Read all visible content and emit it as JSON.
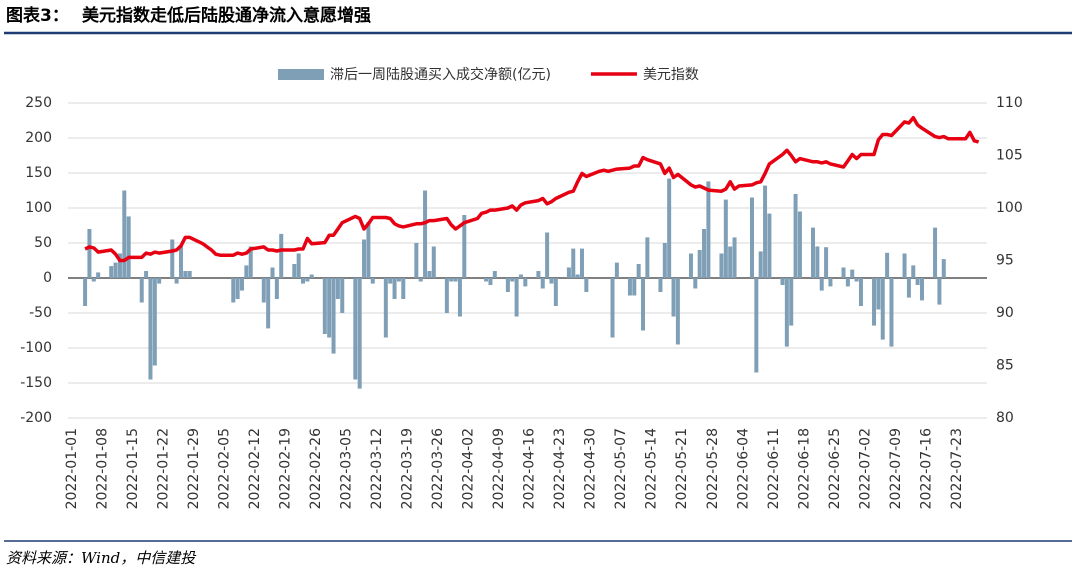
{
  "chart_data": {
    "type": "combo",
    "figure_label": "图表3：",
    "title": "美元指数走低后陆股通净流入意愿增强",
    "source": "资料来源：Wind，中信建投",
    "x": [
      "2022-01-04",
      "2022-01-05",
      "2022-01-06",
      "2022-01-07",
      "2022-01-10",
      "2022-01-11",
      "2022-01-12",
      "2022-01-13",
      "2022-01-14",
      "2022-01-17",
      "2022-01-18",
      "2022-01-19",
      "2022-01-20",
      "2022-01-21",
      "2022-01-24",
      "2022-01-25",
      "2022-01-26",
      "2022-01-27",
      "2022-01-28",
      "2022-01-31",
      "2022-02-01",
      "2022-02-02",
      "2022-02-03",
      "2022-02-04",
      "2022-02-07",
      "2022-02-08",
      "2022-02-09",
      "2022-02-10",
      "2022-02-11",
      "2022-02-14",
      "2022-02-15",
      "2022-02-16",
      "2022-02-17",
      "2022-02-18",
      "2022-02-21",
      "2022-02-22",
      "2022-02-23",
      "2022-02-24",
      "2022-02-25",
      "2022-02-28",
      "2022-03-01",
      "2022-03-02",
      "2022-03-03",
      "2022-03-04",
      "2022-03-07",
      "2022-03-08",
      "2022-03-09",
      "2022-03-10",
      "2022-03-11",
      "2022-03-14",
      "2022-03-15",
      "2022-03-16",
      "2022-03-17",
      "2022-03-18",
      "2022-03-21",
      "2022-03-22",
      "2022-03-23",
      "2022-03-24",
      "2022-03-25",
      "2022-03-28",
      "2022-03-29",
      "2022-03-30",
      "2022-03-31",
      "2022-04-01",
      "2022-04-04",
      "2022-04-05",
      "2022-04-06",
      "2022-04-07",
      "2022-04-08",
      "2022-04-11",
      "2022-04-12",
      "2022-04-13",
      "2022-04-14",
      "2022-04-15",
      "2022-04-18",
      "2022-04-19",
      "2022-04-20",
      "2022-04-21",
      "2022-04-22",
      "2022-04-25",
      "2022-04-26",
      "2022-04-27",
      "2022-04-28",
      "2022-04-29",
      "2022-05-02",
      "2022-05-03",
      "2022-05-04",
      "2022-05-05",
      "2022-05-06",
      "2022-05-09",
      "2022-05-10",
      "2022-05-11",
      "2022-05-12",
      "2022-05-13",
      "2022-05-16",
      "2022-05-17",
      "2022-05-18",
      "2022-05-19",
      "2022-05-20",
      "2022-05-23",
      "2022-05-24",
      "2022-05-25",
      "2022-05-26",
      "2022-05-27",
      "2022-05-30",
      "2022-05-31",
      "2022-06-01",
      "2022-06-02",
      "2022-06-03",
      "2022-06-06",
      "2022-06-07",
      "2022-06-08",
      "2022-06-09",
      "2022-06-10",
      "2022-06-13",
      "2022-06-14",
      "2022-06-15",
      "2022-06-16",
      "2022-06-17",
      "2022-06-20",
      "2022-06-21",
      "2022-06-22",
      "2022-06-23",
      "2022-06-24",
      "2022-06-27",
      "2022-06-28",
      "2022-06-29",
      "2022-06-30",
      "2022-07-01",
      "2022-07-04",
      "2022-07-05",
      "2022-07-06",
      "2022-07-07",
      "2022-07-08",
      "2022-07-11",
      "2022-07-12",
      "2022-07-13",
      "2022-07-14",
      "2022-07-15",
      "2022-07-18",
      "2022-07-19",
      "2022-07-20",
      "2022-07-21",
      "2022-07-22",
      "2022-07-25",
      "2022-07-26",
      "2022-07-27",
      "2022-07-28"
    ],
    "series": [
      {
        "name": "滞后一周陆股通买入成交净额(亿元)",
        "type": "bar",
        "color": "#7f9fb6",
        "values": [
          -40,
          70,
          -5,
          8,
          17,
          22,
          35,
          125,
          88,
          -35,
          10,
          -145,
          -125,
          -8,
          55,
          -8,
          45,
          10,
          10,
          null,
          null,
          null,
          null,
          null,
          -35,
          -30,
          -18,
          18,
          45,
          -35,
          -72,
          15,
          -30,
          63,
          20,
          35,
          -8,
          -5,
          5,
          -80,
          -85,
          -108,
          -30,
          -50,
          -145,
          -158,
          55,
          80,
          -8,
          -85,
          -8,
          -30,
          -5,
          -30,
          50,
          -5,
          125,
          10,
          45,
          -50,
          -5,
          -5,
          -55,
          90,
          null,
          null,
          -5,
          -10,
          10,
          -20,
          -5,
          -55,
          5,
          -12,
          10,
          -15,
          65,
          -8,
          -40,
          15,
          42,
          5,
          42,
          -20,
          null,
          null,
          null,
          -85,
          22,
          -25,
          -25,
          20,
          -75,
          58,
          -20,
          50,
          142,
          -55,
          -95,
          35,
          -15,
          40,
          70,
          138,
          35,
          112,
          45,
          58,
          null,
          115,
          -135,
          38,
          132,
          92,
          -10,
          -98,
          -68,
          120,
          95,
          72,
          45,
          -18,
          44,
          -12,
          15,
          -12,
          12,
          -5,
          -40,
          -68,
          -45,
          -88,
          36,
          -98,
          35,
          -28,
          18,
          -10,
          -32,
          72,
          -38,
          27,
          null,
          null,
          null,
          null,
          null,
          null
        ]
      },
      {
        "name": "美元指数",
        "type": "line",
        "axis": "y2",
        "color": "#e60012",
        "values": [
          96.1,
          96.3,
          96.2,
          95.8,
          96.0,
          95.6,
          95.0,
          95.0,
          95.3,
          95.3,
          95.7,
          95.6,
          95.8,
          95.7,
          95.9,
          96.0,
          96.4,
          97.2,
          97.2,
          96.6,
          96.3,
          96.0,
          95.6,
          95.5,
          95.5,
          95.7,
          95.6,
          95.7,
          96.1,
          96.3,
          96.0,
          96.0,
          95.9,
          96.0,
          96.0,
          96.1,
          96.1,
          97.1,
          96.6,
          96.7,
          97.4,
          97.4,
          98.0,
          98.6,
          99.2,
          99.0,
          98.0,
          98.5,
          99.1,
          99.1,
          99.0,
          98.5,
          98.3,
          98.2,
          98.5,
          98.5,
          98.6,
          98.8,
          98.8,
          99.0,
          98.4,
          98.0,
          98.3,
          98.6,
          99.0,
          99.5,
          99.6,
          99.8,
          99.8,
          100.0,
          100.2,
          99.8,
          100.3,
          100.5,
          100.7,
          100.9,
          100.4,
          100.6,
          100.9,
          101.5,
          101.6,
          102.5,
          103.3,
          103.0,
          103.5,
          103.6,
          103.5,
          103.6,
          103.7,
          103.8,
          104.0,
          104.0,
          104.8,
          104.6,
          104.2,
          103.3,
          103.8,
          102.9,
          103.2,
          102.2,
          102.0,
          102.1,
          101.9,
          101.7,
          101.6,
          101.8,
          102.5,
          101.8,
          102.1,
          102.2,
          102.4,
          102.5,
          103.3,
          104.2,
          105.1,
          105.5,
          105.0,
          104.4,
          104.7,
          104.4,
          104.4,
          104.3,
          104.4,
          104.2,
          103.9,
          104.5,
          105.1,
          104.7,
          105.1,
          105.1,
          106.5,
          107.0,
          107.0,
          106.9,
          108.2,
          108.1,
          108.6,
          107.9,
          107.6,
          106.8,
          106.7,
          106.8,
          106.6,
          106.6,
          106.6,
          107.2,
          106.4,
          106.3
        ]
      }
    ],
    "xlim": [
      "2022-01-01",
      "2022-07-29"
    ],
    "xticks": [
      "2022-01-01",
      "2022-01-08",
      "2022-01-15",
      "2022-01-22",
      "2022-01-29",
      "2022-02-05",
      "2022-02-12",
      "2022-02-19",
      "2022-02-26",
      "2022-03-05",
      "2022-03-12",
      "2022-03-19",
      "2022-03-26",
      "2022-04-02",
      "2022-04-09",
      "2022-04-16",
      "2022-04-23",
      "2022-04-30",
      "2022-05-07",
      "2022-05-14",
      "2022-05-21",
      "2022-05-28",
      "2022-06-04",
      "2022-06-11",
      "2022-06-18",
      "2022-06-25",
      "2022-07-02",
      "2022-07-09",
      "2022-07-16",
      "2022-07-23"
    ],
    "ylim": [
      -200,
      250
    ],
    "yticks": [
      -200,
      -150,
      -100,
      -50,
      0,
      50,
      100,
      150,
      200,
      250
    ],
    "y2lim": [
      80,
      110
    ],
    "y2ticks": [
      80,
      85,
      90,
      95,
      100,
      105,
      110
    ],
    "grid": true,
    "legend": "top"
  }
}
